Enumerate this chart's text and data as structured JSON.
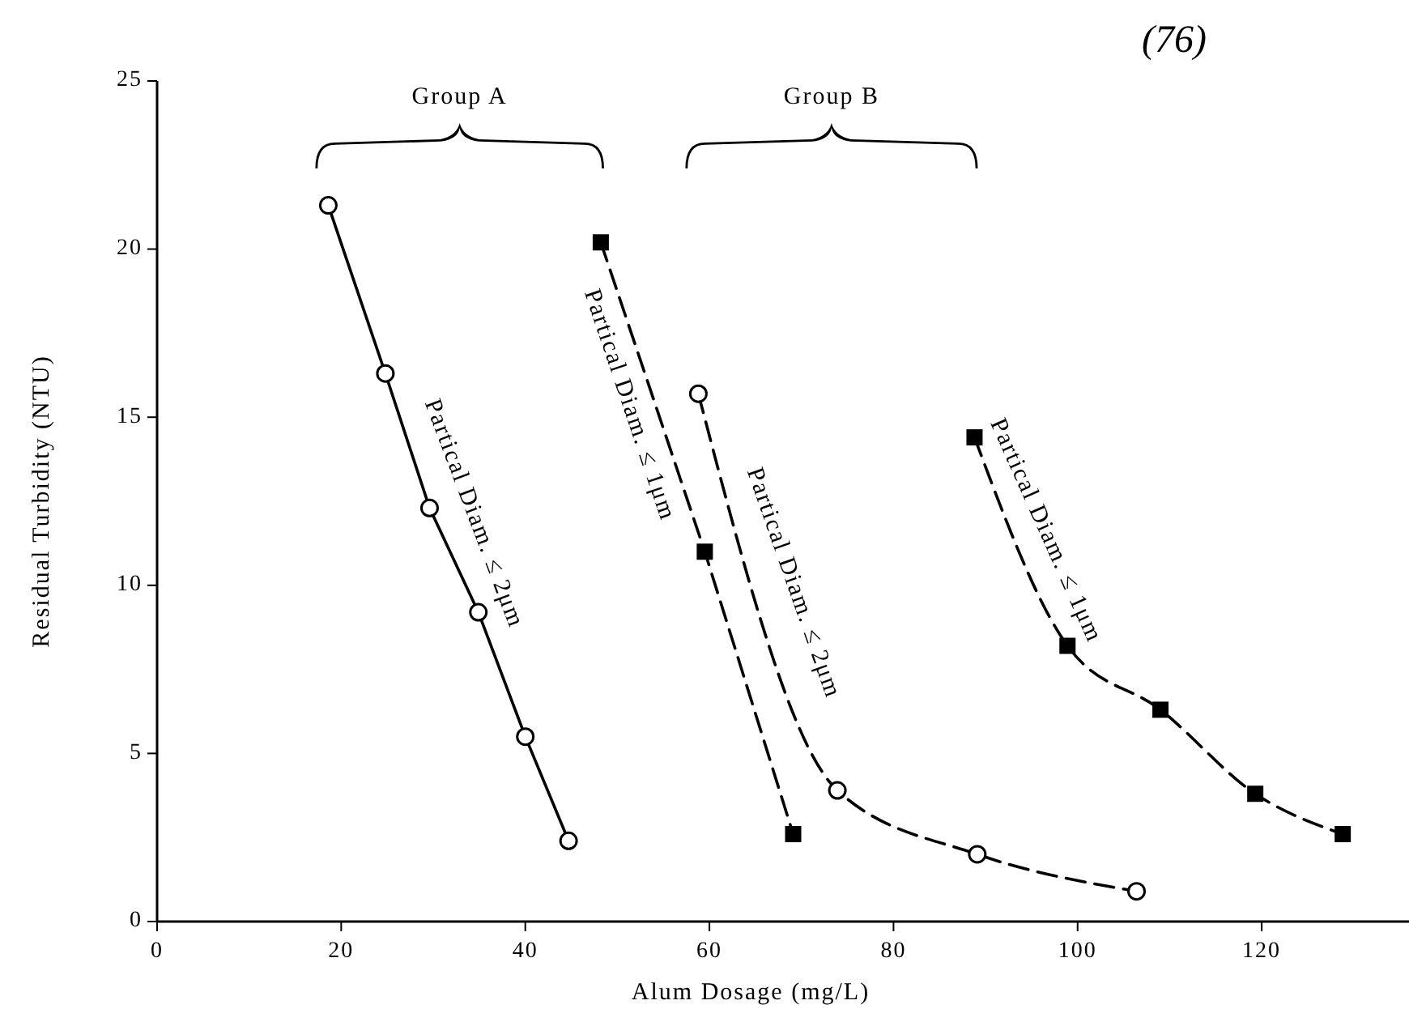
{
  "chart_data": {
    "type": "line",
    "xlabel": "Alum Dosage (mg/L)",
    "ylabel": "Residual Turbidity (NTU)",
    "xlim": [
      0,
      136
    ],
    "xticks": [
      0,
      20,
      40,
      60,
      80,
      100,
      120
    ],
    "ylim": [
      0,
      25
    ],
    "yticks": [
      0,
      5,
      10,
      15,
      20,
      25
    ],
    "grid": false,
    "series": [
      {
        "name": "Partical Diam. ≤ 2μm",
        "color": "#000000",
        "marker": "circle",
        "line_style": "solid",
        "x": [
          18.6,
          24.8,
          29.6,
          34.9,
          40.0,
          44.7
        ],
        "values": [
          21.3,
          16.3,
          12.3,
          9.2,
          5.5,
          2.4
        ]
      },
      {
        "name": "Partical Diam. ≤ 1μm",
        "color": "#000000",
        "marker": "square",
        "line_style": "dashed",
        "x": [
          48.2,
          59.5,
          69.1
        ],
        "values": [
          20.2,
          11.0,
          2.6
        ]
      },
      {
        "name": "Partical Diam. ≤ 2μm",
        "color": "#000000",
        "marker": "circle",
        "line_style": "dashed",
        "x": [
          58.8,
          73.9,
          89.1,
          106.4
        ],
        "values": [
          15.7,
          3.9,
          2.0,
          0.9
        ]
      },
      {
        "name": "Partical Diam. ≤ 1μm",
        "color": "#000000",
        "marker": "square",
        "line_style": "dashed",
        "x": [
          88.8,
          98.9,
          109.0,
          119.3,
          128.8
        ],
        "values": [
          14.4,
          8.2,
          6.3,
          3.8,
          2.6
        ]
      }
    ],
    "annotations": [
      "Group A",
      "Group B",
      "(76)"
    ]
  }
}
